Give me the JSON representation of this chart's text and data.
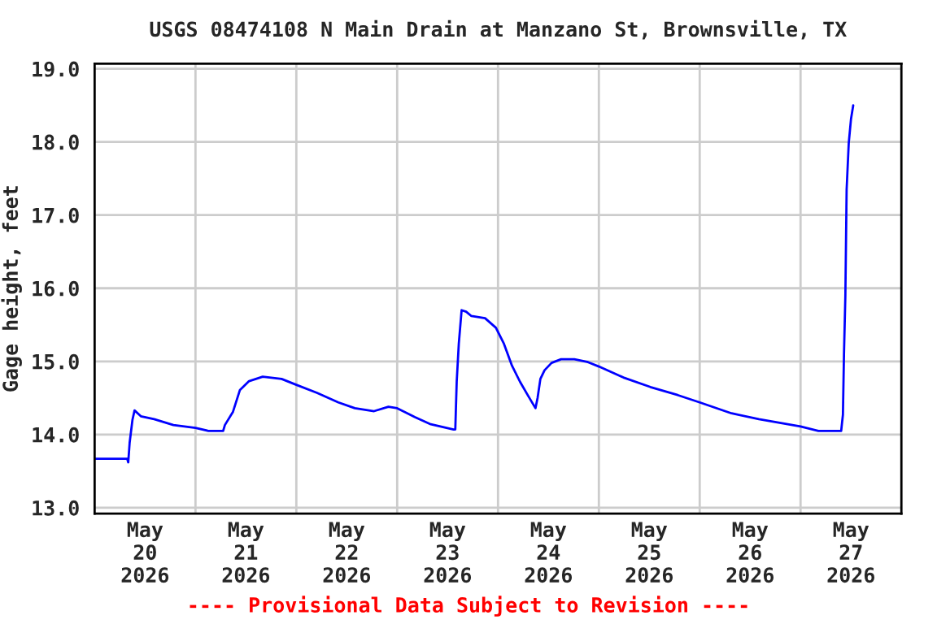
{
  "chart_data": {
    "type": "line",
    "title": "USGS 08474108 N Main Drain at Manzano St, Brownsville, TX",
    "ylabel": "Gage height, feet",
    "annotations": [
      "---- Provisional Data Subject to Revision ----"
    ],
    "x": [
      "2026-05-20T00:00",
      "2026-05-20T07:45",
      "2026-05-20T08:00",
      "2026-05-20T08:20",
      "2026-05-20T09:00",
      "2026-05-20T09:30",
      "2026-05-20T11:00",
      "2026-05-20T14:10",
      "2026-05-20T18:45",
      "2026-05-21T00:00",
      "2026-05-21T03:05",
      "2026-05-21T06:35",
      "2026-05-21T07:00",
      "2026-05-21T08:55",
      "2026-05-21T10:35",
      "2026-05-21T12:45",
      "2026-05-21T16:00",
      "2026-05-21T20:30",
      "2026-05-22T00:00",
      "2026-05-22T04:55",
      "2026-05-22T10:00",
      "2026-05-22T13:55",
      "2026-05-22T18:30",
      "2026-05-22T21:55",
      "2026-05-23T00:00",
      "2026-05-23T04:10",
      "2026-05-23T08:00",
      "2026-05-23T13:25",
      "2026-05-23T13:50",
      "2026-05-23T14:10",
      "2026-05-23T14:40",
      "2026-05-23T15:20",
      "2026-05-23T16:25",
      "2026-05-23T17:40",
      "2026-05-23T20:55",
      "2026-05-23T23:30",
      "2026-05-24T01:25",
      "2026-05-24T03:20",
      "2026-05-24T05:15",
      "2026-05-24T07:10",
      "2026-05-24T08:55",
      "2026-05-24T09:25",
      "2026-05-24T10:05",
      "2026-05-24T11:05",
      "2026-05-24T12:45",
      "2026-05-24T15:00",
      "2026-05-24T18:10",
      "2026-05-24T21:25",
      "2026-05-25T00:00",
      "2026-05-25T05:50",
      "2026-05-25T12:15",
      "2026-05-25T18:45",
      "2026-05-26T00:00",
      "2026-05-26T07:35",
      "2026-05-26T14:05",
      "2026-05-27T00:00",
      "2026-05-27T04:15",
      "2026-05-27T09:40",
      "2026-05-27T10:05",
      "2026-05-27T10:20",
      "2026-05-27T10:40",
      "2026-05-27T10:58",
      "2026-05-27T11:28",
      "2026-05-27T12:00",
      "2026-05-27T12:32"
    ],
    "series": [
      {
        "color": "#0000ff",
        "values": [
          13.67,
          13.67,
          13.62,
          13.89,
          14.2,
          14.33,
          14.25,
          14.21,
          14.13,
          14.09,
          14.05,
          14.05,
          14.13,
          14.31,
          14.61,
          14.73,
          14.79,
          14.76,
          14.68,
          14.57,
          14.44,
          14.36,
          14.32,
          14.38,
          14.36,
          14.24,
          14.14,
          14.07,
          14.07,
          14.72,
          15.24,
          15.7,
          15.68,
          15.62,
          15.59,
          15.46,
          15.24,
          14.94,
          14.72,
          14.53,
          14.36,
          14.5,
          14.76,
          14.88,
          14.98,
          15.03,
          15.03,
          14.99,
          14.93,
          14.78,
          14.65,
          14.54,
          14.44,
          14.29,
          14.21,
          14.11,
          14.05,
          14.05,
          14.27,
          15.09,
          15.9,
          17.35,
          17.98,
          18.31,
          18.5
        ]
      }
    ],
    "xlim": [
      "2026-05-20T00:00",
      "2026-05-28T00:00"
    ],
    "xticks": [
      {
        "value": "2026-05-20T12:00",
        "label": "May\n20\n2026"
      },
      {
        "value": "2026-05-21T00:00",
        "label": null
      },
      {
        "value": "2026-05-21T12:00",
        "label": "May\n21\n2026"
      },
      {
        "value": "2026-05-22T00:00",
        "label": null
      },
      {
        "value": "2026-05-22T12:00",
        "label": "May\n22\n2026"
      },
      {
        "value": "2026-05-23T00:00",
        "label": null
      },
      {
        "value": "2026-05-23T12:00",
        "label": "May\n23\n2026"
      },
      {
        "value": "2026-05-24T00:00",
        "label": null
      },
      {
        "value": "2026-05-24T12:00",
        "label": "May\n24\n2026"
      },
      {
        "value": "2026-05-25T00:00",
        "label": null
      },
      {
        "value": "2026-05-25T12:00",
        "label": "May\n25\n2026"
      },
      {
        "value": "2026-05-26T00:00",
        "label": null
      },
      {
        "value": "2026-05-26T12:00",
        "label": "May\n26\n2026"
      },
      {
        "value": "2026-05-27T00:00",
        "label": null
      },
      {
        "value": "2026-05-27T12:00",
        "label": "May\n27\n2026"
      }
    ],
    "ylim": [
      12.92,
      19.07
    ],
    "yticks": [
      {
        "value": 13,
        "label": "13.0"
      },
      {
        "value": 14,
        "label": "14.0"
      },
      {
        "value": 15,
        "label": "15.0"
      },
      {
        "value": 16,
        "label": "16.0"
      },
      {
        "value": 17,
        "label": "17.0"
      },
      {
        "value": 18,
        "label": "18.0"
      },
      {
        "value": 19,
        "label": "19.0"
      }
    ],
    "grid": true,
    "legend": false,
    "marker": "none",
    "line_style": "solid"
  }
}
